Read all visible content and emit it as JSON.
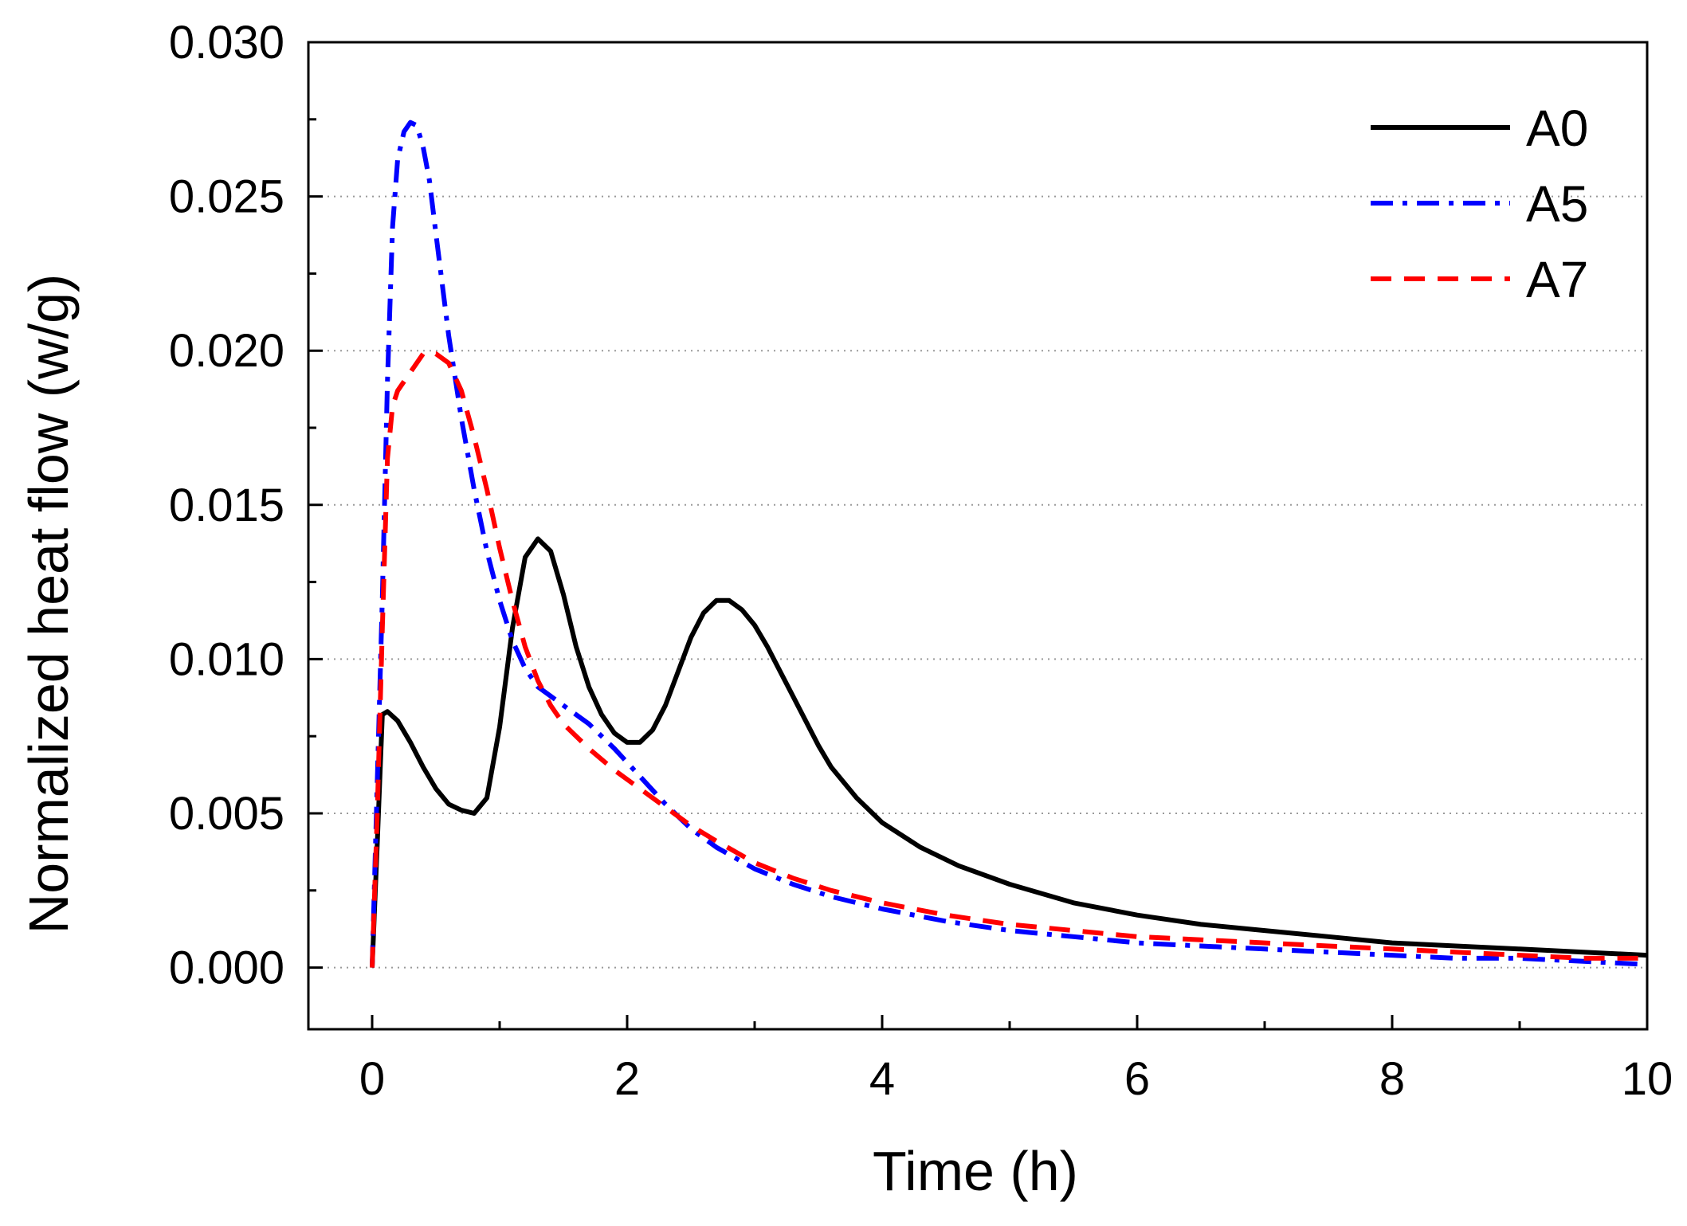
{
  "chart_data": {
    "type": "line",
    "title": "",
    "xlabel": "Time (h)",
    "ylabel": "Normalized heat flow (w/g)",
    "xlim": [
      -0.5,
      10
    ],
    "ylim": [
      -0.002,
      0.03
    ],
    "xticks": [
      0,
      2,
      4,
      6,
      8,
      10
    ],
    "xtick_labels": [
      "0",
      "2",
      "4",
      "6",
      "8",
      "10"
    ],
    "yticks": [
      0.0,
      0.005,
      0.01,
      0.015,
      0.02,
      0.025,
      0.03
    ],
    "ytick_labels": [
      "0.000",
      "0.005",
      "0.010",
      "0.015",
      "0.020",
      "0.025",
      "0.030"
    ],
    "grid": "horizontal dotted",
    "legend_position": "top-right",
    "series": [
      {
        "name": "A0",
        "color": "#000000",
        "style": "solid",
        "x": [
          0,
          0.04,
          0.08,
          0.12,
          0.2,
          0.3,
          0.4,
          0.5,
          0.6,
          0.7,
          0.8,
          0.9,
          1.0,
          1.1,
          1.2,
          1.3,
          1.4,
          1.5,
          1.6,
          1.7,
          1.8,
          1.9,
          2.0,
          2.1,
          2.2,
          2.3,
          2.4,
          2.5,
          2.6,
          2.7,
          2.8,
          2.9,
          3.0,
          3.1,
          3.2,
          3.3,
          3.4,
          3.5,
          3.6,
          3.8,
          4.0,
          4.3,
          4.6,
          5.0,
          5.5,
          6.0,
          6.5,
          7.0,
          7.5,
          8.0,
          8.5,
          9.0,
          9.5,
          10.0
        ],
        "y": [
          0.0,
          0.004,
          0.0082,
          0.0083,
          0.008,
          0.0073,
          0.0065,
          0.0058,
          0.0053,
          0.0051,
          0.005,
          0.0055,
          0.0078,
          0.011,
          0.0133,
          0.0139,
          0.0135,
          0.0121,
          0.0104,
          0.0091,
          0.0082,
          0.0076,
          0.0073,
          0.0073,
          0.0077,
          0.0085,
          0.0096,
          0.0107,
          0.0115,
          0.0119,
          0.0119,
          0.0116,
          0.0111,
          0.0104,
          0.0096,
          0.0088,
          0.008,
          0.0072,
          0.0065,
          0.0055,
          0.0047,
          0.0039,
          0.0033,
          0.0027,
          0.0021,
          0.0017,
          0.0014,
          0.0012,
          0.001,
          0.0008,
          0.0007,
          0.0006,
          0.0005,
          0.0004
        ]
      },
      {
        "name": "A5",
        "color": "#0000ff",
        "style": "dash-dot",
        "x": [
          0,
          0.04,
          0.08,
          0.12,
          0.16,
          0.2,
          0.25,
          0.3,
          0.35,
          0.4,
          0.45,
          0.5,
          0.6,
          0.7,
          0.8,
          0.9,
          1.0,
          1.1,
          1.2,
          1.3,
          1.4,
          1.5,
          1.7,
          1.9,
          2.1,
          2.3,
          2.5,
          2.7,
          3.0,
          3.3,
          3.6,
          4.0,
          4.5,
          5.0,
          5.5,
          6.0,
          6.5,
          7.0,
          7.5,
          8.0,
          8.5,
          9.0,
          9.5,
          10.0
        ],
        "y": [
          0.0,
          0.006,
          0.012,
          0.019,
          0.024,
          0.0262,
          0.0271,
          0.0274,
          0.0273,
          0.0266,
          0.0255,
          0.0238,
          0.0205,
          0.0178,
          0.0155,
          0.0135,
          0.0119,
          0.0106,
          0.0097,
          0.0091,
          0.0088,
          0.0085,
          0.0079,
          0.0071,
          0.0062,
          0.0053,
          0.0045,
          0.0039,
          0.0032,
          0.0027,
          0.0023,
          0.0019,
          0.0015,
          0.0012,
          0.001,
          0.0008,
          0.0007,
          0.0006,
          0.0005,
          0.0004,
          0.0003,
          0.0003,
          0.0002,
          0.0001
        ]
      },
      {
        "name": "A7",
        "color": "#ff0000",
        "style": "dashed",
        "x": [
          0,
          0.04,
          0.08,
          0.12,
          0.16,
          0.2,
          0.3,
          0.4,
          0.5,
          0.6,
          0.7,
          0.8,
          0.9,
          1.0,
          1.1,
          1.2,
          1.3,
          1.4,
          1.5,
          1.7,
          1.9,
          2.1,
          2.3,
          2.5,
          2.7,
          3.0,
          3.3,
          3.6,
          4.0,
          4.5,
          5.0,
          5.5,
          6.0,
          6.5,
          7.0,
          7.5,
          8.0,
          8.5,
          9.0,
          9.5,
          10.0
        ],
        "y": [
          0.0,
          0.005,
          0.011,
          0.0165,
          0.0182,
          0.0187,
          0.0193,
          0.0199,
          0.0199,
          0.0196,
          0.0187,
          0.0172,
          0.0155,
          0.0136,
          0.0119,
          0.0104,
          0.0093,
          0.0085,
          0.0079,
          0.0071,
          0.0064,
          0.0058,
          0.0052,
          0.0046,
          0.0041,
          0.0034,
          0.0029,
          0.0025,
          0.0021,
          0.0017,
          0.0014,
          0.0012,
          0.001,
          0.0009,
          0.0008,
          0.0007,
          0.0006,
          0.0005,
          0.0004,
          0.0003,
          0.0003
        ]
      }
    ]
  }
}
